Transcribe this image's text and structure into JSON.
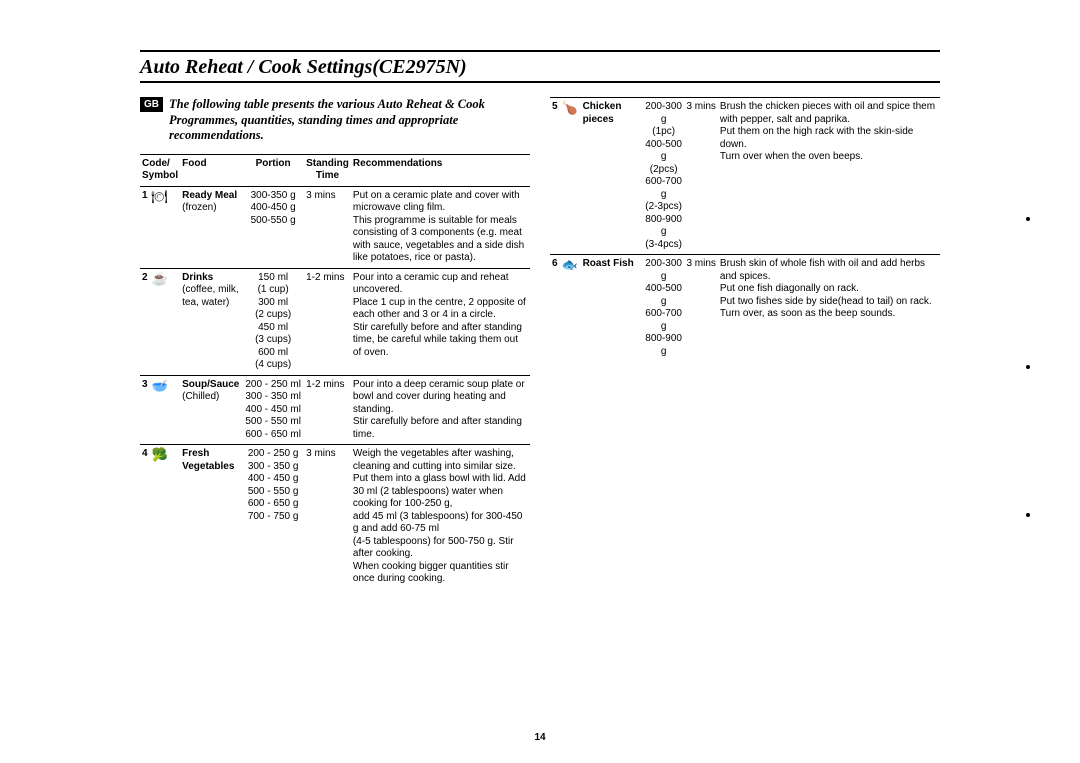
{
  "title": "Auto Reheat / Cook Settings(CE2975N)",
  "gb": "GB",
  "intro": "The following table presents the various Auto Reheat & Cook Programmes,  quantities, standing times and appropriate recommendations.",
  "headers": {
    "code": "Code/\nSymbol",
    "food": "Food",
    "portion": "Portion",
    "standing": "Standing\nTime",
    "rec": "Recommendations"
  },
  "left_rows": [
    {
      "num": "1",
      "symbol": "🍽",
      "food_bold": "Ready Meal",
      "food_plain": "(frozen)",
      "portion": "300-350 g\n400-450 g\n500-550 g",
      "standing": "3 mins",
      "rec": "Put on a ceramic plate and cover with microwave cling film.\nThis programme is suitable for meals consisting of 3 components (e.g. meat with sauce, vegetables and a side dish like potatoes, rice or pasta)."
    },
    {
      "num": "2",
      "symbol": "☕",
      "food_bold": "Drinks",
      "food_plain": "(coffee, milk, tea, water)",
      "portion": "150 ml\n(1 cup)\n300 ml\n(2 cups)\n450 ml\n(3 cups)\n600 ml\n(4 cups)",
      "standing": "1-2 mins",
      "rec": "Pour into a ceramic cup and reheat uncovered.\nPlace 1 cup in the centre, 2 opposite of each other and 3 or 4 in a circle.\nStir carefully before and after standing time, be careful while taking them out of oven."
    },
    {
      "num": "3",
      "symbol": "🥣",
      "food_bold": "Soup/Sauce",
      "food_plain": "(Chilled)",
      "portion": "200 - 250 ml\n300 - 350 ml\n400 - 450 ml\n500 - 550 ml\n600 - 650 ml",
      "standing": "1-2 mins",
      "rec": "Pour into a deep ceramic soup plate or bowl and cover during heating and standing.\nStir carefully before and after standing time."
    },
    {
      "num": "4",
      "symbol": "🥦",
      "food_bold": "Fresh Vegetables",
      "food_plain": "",
      "portion": "200 - 250 g\n300 - 350 g\n400 - 450 g\n500 - 550 g\n600 - 650 g\n700 - 750 g",
      "standing": "3 mins",
      "rec": "Weigh the vegetables after washing, cleaning and cutting into similar size.\nPut them into a glass bowl with lid. Add 30 ml (2 tablespoons) water when cooking for 100-250 g,\nadd 45 ml (3 tablespoons) for 300-450 g and add 60-75 ml\n(4-5 tablespoons) for 500-750 g. Stir after cooking.\nWhen cooking bigger quantities stir once during cooking."
    }
  ],
  "right_rows": [
    {
      "num": "5",
      "symbol": "🍗",
      "food_bold": "Chicken pieces",
      "food_plain": "",
      "portion": "200-300 g\n(1pc)\n400-500 g\n(2pcs)\n600-700 g\n(2-3pcs)\n800-900 g\n(3-4pcs)",
      "standing": "3 mins",
      "rec": "Brush the chicken pieces with oil and spice them with pepper, salt and paprika.\nPut them on the high rack with the skin-side down.\nTurn over when the oven beeps."
    },
    {
      "num": "6",
      "symbol": "🐟",
      "food_bold": "Roast Fish",
      "food_plain": "",
      "portion": "200-300 g\n400-500 g\n600-700 g\n800-900 g",
      "standing": "3 mins",
      "rec": "Brush skin of whole fish with oil and add herbs and spices.\nPut one fish diagonally on rack.\nPut two fishes side by side(head to tail) on rack.\nTurn over, as soon as the beep sounds."
    }
  ],
  "page_number": "14"
}
